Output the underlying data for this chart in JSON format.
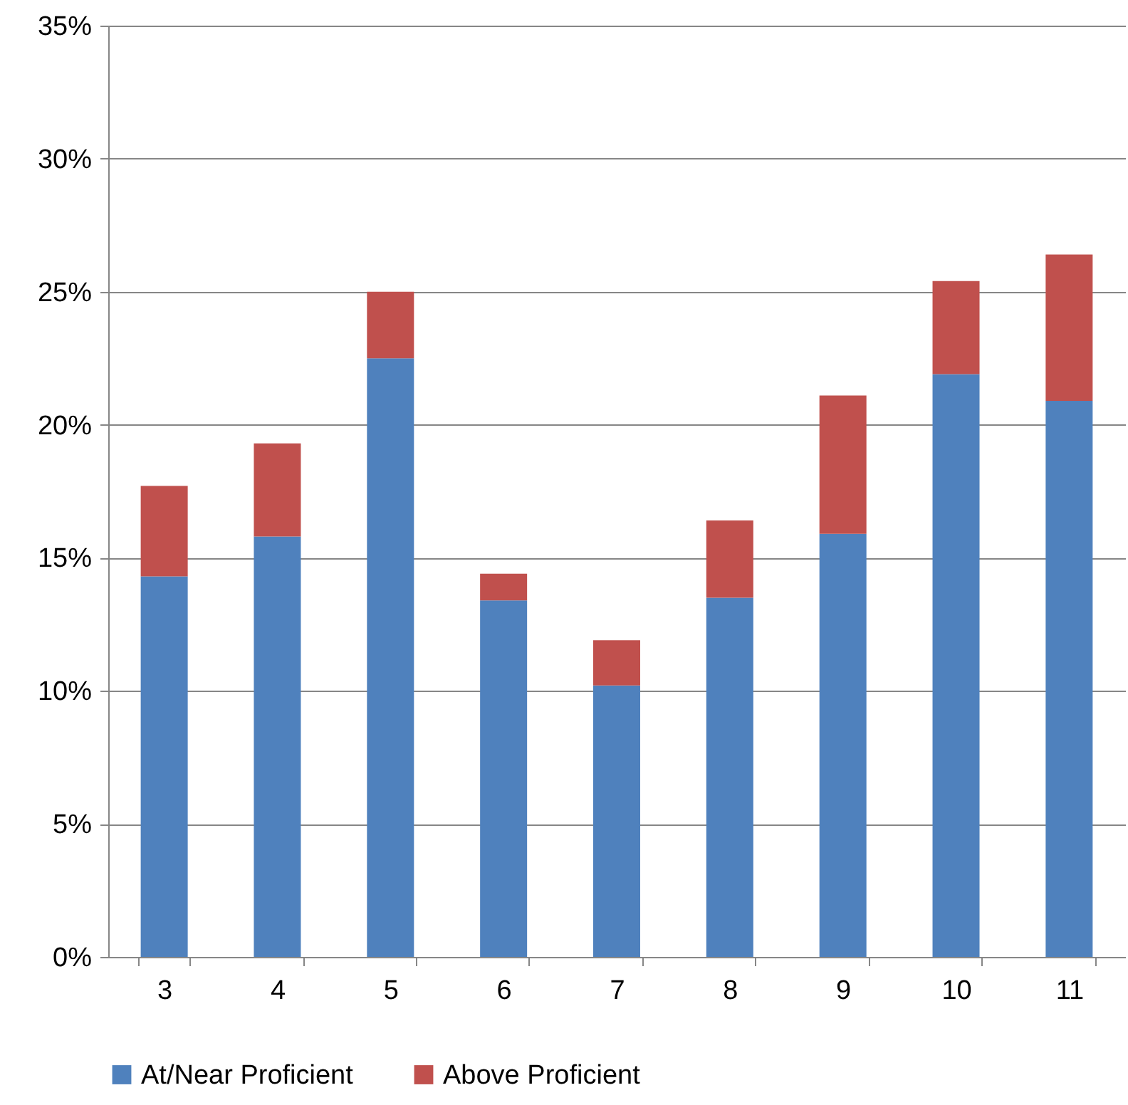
{
  "chart_data": {
    "type": "bar",
    "stacked": true,
    "categories": [
      "3",
      "4",
      "5",
      "6",
      "7",
      "8",
      "9",
      "10",
      "11"
    ],
    "series": [
      {
        "name": "At/Near Proficient",
        "color": "#4f81bd",
        "values": [
          14.3,
          15.8,
          22.5,
          13.4,
          10.2,
          13.5,
          15.9,
          21.9,
          20.9
        ]
      },
      {
        "name": "Above Proficient",
        "color": "#c0504d",
        "values": [
          3.4,
          3.5,
          2.5,
          1.0,
          1.7,
          2.9,
          5.2,
          3.5,
          5.5
        ]
      }
    ],
    "ylim": [
      0,
      35
    ],
    "yticks": [
      {
        "value": 0,
        "label": "0%"
      },
      {
        "value": 5,
        "label": "5%"
      },
      {
        "value": 10,
        "label": "10%"
      },
      {
        "value": 15,
        "label": "15%"
      },
      {
        "value": 20,
        "label": "20%"
      },
      {
        "value": 25,
        "label": "25%"
      },
      {
        "value": 30,
        "label": "30%"
      },
      {
        "value": 35,
        "label": "35%"
      }
    ],
    "grid": "y",
    "legend": "bottom"
  }
}
